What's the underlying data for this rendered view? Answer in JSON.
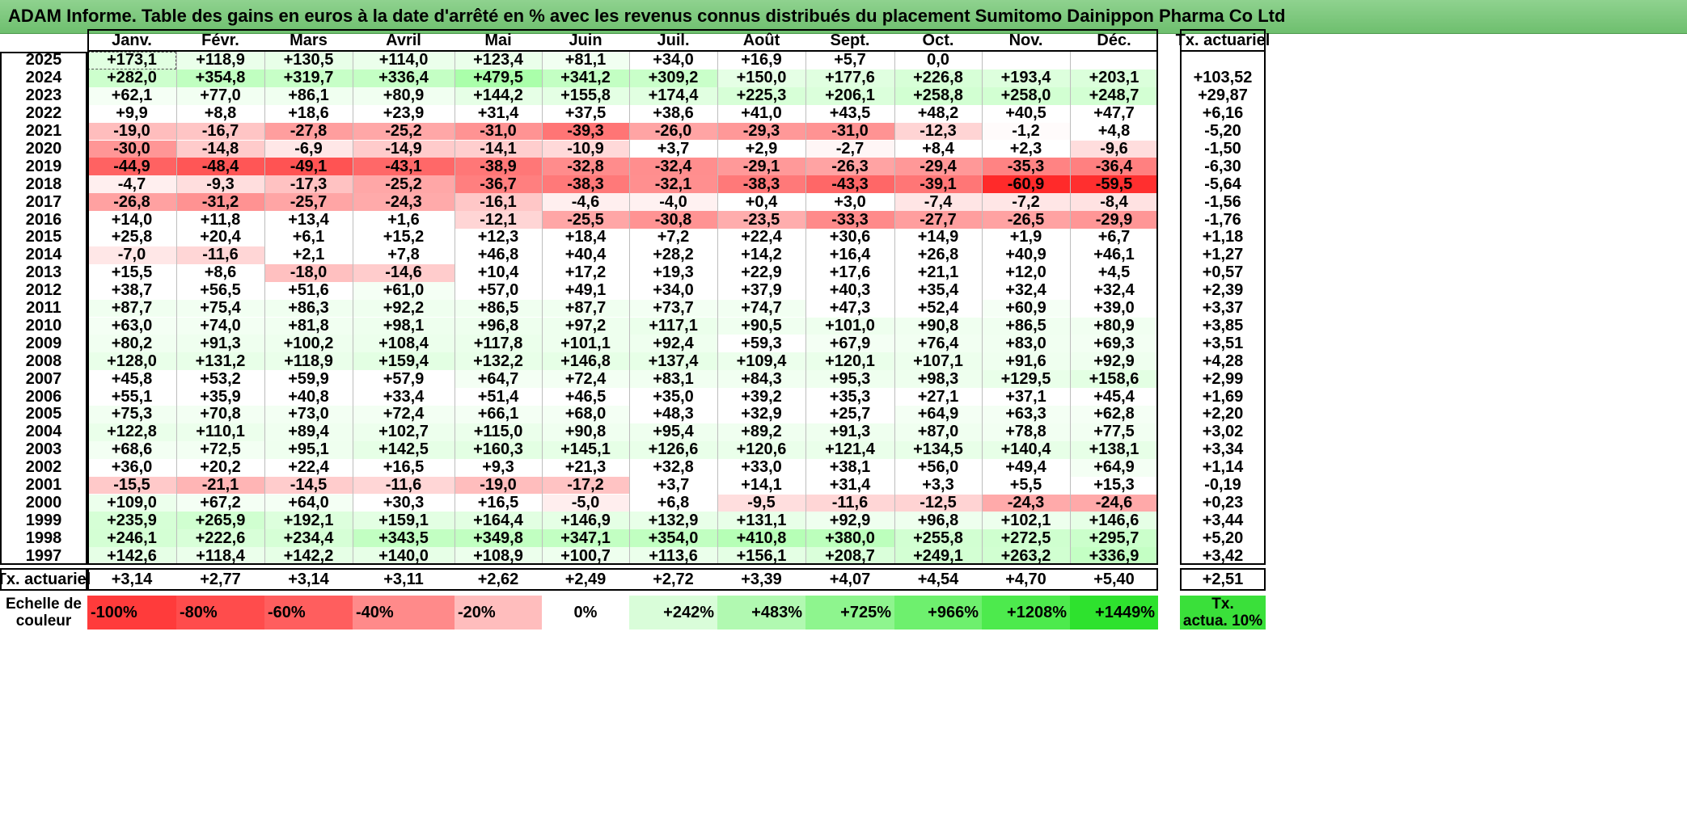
{
  "title": "ADAM Informe. Table des gains en euros à la date d'arrêté en % avec les revenus connus distribués du placement Sumitomo Dainippon Pharma Co Ltd",
  "months": [
    "Janv.",
    "Févr.",
    "Mars",
    "Avril",
    "Mai",
    "Juin",
    "Juil.",
    "Août",
    "Sept.",
    "Oct.",
    "Nov.",
    "Déc."
  ],
  "rate_header": "Tx. actuariel",
  "rows": [
    {
      "year": "2025",
      "values": [
        "+173,1",
        "+118,9",
        "+130,5",
        "+114,0",
        "+123,4",
        "+81,1",
        "+34,0",
        "+16,9",
        "+5,7",
        "0,0",
        "",
        ""
      ],
      "rate": ""
    },
    {
      "year": "2024",
      "values": [
        "+282,0",
        "+354,8",
        "+319,7",
        "+336,4",
        "+479,5",
        "+341,2",
        "+309,2",
        "+150,0",
        "+177,6",
        "+226,8",
        "+193,4",
        "+203,1"
      ],
      "rate": "+103,52"
    },
    {
      "year": "2023",
      "values": [
        "+62,1",
        "+77,0",
        "+86,1",
        "+80,9",
        "+144,2",
        "+155,8",
        "+174,4",
        "+225,3",
        "+206,1",
        "+258,8",
        "+258,0",
        "+248,7"
      ],
      "rate": "+29,87"
    },
    {
      "year": "2022",
      "values": [
        "+9,9",
        "+8,8",
        "+18,6",
        "+23,9",
        "+31,4",
        "+37,5",
        "+38,6",
        "+41,0",
        "+43,5",
        "+48,2",
        "+40,5",
        "+47,7"
      ],
      "rate": "+6,16"
    },
    {
      "year": "2021",
      "values": [
        "-19,0",
        "-16,7",
        "-27,8",
        "-25,2",
        "-31,0",
        "-39,3",
        "-26,0",
        "-29,3",
        "-31,0",
        "-12,3",
        "-1,2",
        "+4,8"
      ],
      "rate": "-5,20"
    },
    {
      "year": "2020",
      "values": [
        "-30,0",
        "-14,8",
        "-6,9",
        "-14,9",
        "-14,1",
        "-10,9",
        "+3,7",
        "+2,9",
        "-2,7",
        "+8,4",
        "+2,3",
        "-9,6"
      ],
      "rate": "-1,50"
    },
    {
      "year": "2019",
      "values": [
        "-44,9",
        "-48,4",
        "-49,1",
        "-43,1",
        "-38,9",
        "-32,8",
        "-32,4",
        "-29,1",
        "-26,3",
        "-29,4",
        "-35,3",
        "-36,4"
      ],
      "rate": "-6,30"
    },
    {
      "year": "2018",
      "values": [
        "-4,7",
        "-9,3",
        "-17,3",
        "-25,2",
        "-36,7",
        "-38,3",
        "-32,1",
        "-38,3",
        "-43,3",
        "-39,1",
        "-60,9",
        "-59,5"
      ],
      "rate": "-5,64"
    },
    {
      "year": "2017",
      "values": [
        "-26,8",
        "-31,2",
        "-25,7",
        "-24,3",
        "-16,1",
        "-4,6",
        "-4,0",
        "+0,4",
        "+3,0",
        "-7,4",
        "-7,2",
        "-8,4"
      ],
      "rate": "-1,56"
    },
    {
      "year": "2016",
      "values": [
        "+14,0",
        "+11,8",
        "+13,4",
        "+1,6",
        "-12,1",
        "-25,5",
        "-30,8",
        "-23,5",
        "-33,3",
        "-27,7",
        "-26,5",
        "-29,9"
      ],
      "rate": "-1,76"
    },
    {
      "year": "2015",
      "values": [
        "+25,8",
        "+20,4",
        "+6,1",
        "+15,2",
        "+12,3",
        "+18,4",
        "+7,2",
        "+22,4",
        "+30,6",
        "+14,9",
        "+1,9",
        "+6,7"
      ],
      "rate": "+1,18"
    },
    {
      "year": "2014",
      "values": [
        "-7,0",
        "-11,6",
        "+2,1",
        "+7,8",
        "+46,8",
        "+40,4",
        "+28,2",
        "+14,2",
        "+16,4",
        "+26,8",
        "+40,9",
        "+46,1"
      ],
      "rate": "+1,27"
    },
    {
      "year": "2013",
      "values": [
        "+15,5",
        "+8,6",
        "-18,0",
        "-14,6",
        "+10,4",
        "+17,2",
        "+19,3",
        "+22,9",
        "+17,6",
        "+21,1",
        "+12,0",
        "+4,5"
      ],
      "rate": "+0,57"
    },
    {
      "year": "2012",
      "values": [
        "+38,7",
        "+56,5",
        "+51,6",
        "+61,0",
        "+57,0",
        "+49,1",
        "+34,0",
        "+37,9",
        "+40,3",
        "+35,4",
        "+32,4",
        "+32,4"
      ],
      "rate": "+2,39"
    },
    {
      "year": "2011",
      "values": [
        "+87,7",
        "+75,4",
        "+86,3",
        "+92,2",
        "+86,5",
        "+87,7",
        "+73,7",
        "+74,7",
        "+47,3",
        "+52,4",
        "+60,9",
        "+39,0"
      ],
      "rate": "+3,37"
    },
    {
      "year": "2010",
      "values": [
        "+63,0",
        "+74,0",
        "+81,8",
        "+98,1",
        "+96,8",
        "+97,2",
        "+117,1",
        "+90,5",
        "+101,0",
        "+90,8",
        "+86,5",
        "+80,9"
      ],
      "rate": "+3,85"
    },
    {
      "year": "2009",
      "values": [
        "+80,2",
        "+91,3",
        "+100,2",
        "+108,4",
        "+117,8",
        "+101,1",
        "+92,4",
        "+59,3",
        "+67,9",
        "+76,4",
        "+83,0",
        "+69,3"
      ],
      "rate": "+3,51"
    },
    {
      "year": "2008",
      "values": [
        "+128,0",
        "+131,2",
        "+118,9",
        "+159,4",
        "+132,2",
        "+146,8",
        "+137,4",
        "+109,4",
        "+120,1",
        "+107,1",
        "+91,6",
        "+92,9"
      ],
      "rate": "+4,28"
    },
    {
      "year": "2007",
      "values": [
        "+45,8",
        "+53,2",
        "+59,9",
        "+57,9",
        "+64,7",
        "+72,4",
        "+83,1",
        "+84,3",
        "+95,3",
        "+98,3",
        "+129,5",
        "+158,6"
      ],
      "rate": "+2,99"
    },
    {
      "year": "2006",
      "values": [
        "+55,1",
        "+35,9",
        "+40,8",
        "+33,4",
        "+51,4",
        "+46,5",
        "+35,0",
        "+39,2",
        "+35,3",
        "+27,1",
        "+37,1",
        "+45,4"
      ],
      "rate": "+1,69"
    },
    {
      "year": "2005",
      "values": [
        "+75,3",
        "+70,8",
        "+73,0",
        "+72,4",
        "+66,1",
        "+68,0",
        "+48,3",
        "+32,9",
        "+25,7",
        "+64,9",
        "+63,3",
        "+62,8"
      ],
      "rate": "+2,20"
    },
    {
      "year": "2004",
      "values": [
        "+122,8",
        "+110,1",
        "+89,4",
        "+102,7",
        "+115,0",
        "+90,8",
        "+95,4",
        "+89,2",
        "+91,3",
        "+87,0",
        "+78,8",
        "+77,5"
      ],
      "rate": "+3,02"
    },
    {
      "year": "2003",
      "values": [
        "+68,6",
        "+72,5",
        "+95,1",
        "+142,5",
        "+160,3",
        "+145,1",
        "+126,6",
        "+120,6",
        "+121,4",
        "+134,5",
        "+140,4",
        "+138,1"
      ],
      "rate": "+3,34"
    },
    {
      "year": "2002",
      "values": [
        "+36,0",
        "+20,2",
        "+22,4",
        "+16,5",
        "+9,3",
        "+21,3",
        "+32,8",
        "+33,0",
        "+38,1",
        "+56,0",
        "+49,4",
        "+64,9"
      ],
      "rate": "+1,14"
    },
    {
      "year": "2001",
      "values": [
        "-15,5",
        "-21,1",
        "-14,5",
        "-11,6",
        "-19,0",
        "-17,2",
        "+3,7",
        "+14,1",
        "+31,4",
        "+3,3",
        "+5,5",
        "+15,3"
      ],
      "rate": "-0,19"
    },
    {
      "year": "2000",
      "values": [
        "+109,0",
        "+67,2",
        "+64,0",
        "+30,3",
        "+16,5",
        "-5,0",
        "+6,8",
        "-9,5",
        "-11,6",
        "-12,5",
        "-24,3",
        "-24,6"
      ],
      "rate": "+0,23"
    },
    {
      "year": "1999",
      "values": [
        "+235,9",
        "+265,9",
        "+192,1",
        "+159,1",
        "+164,4",
        "+146,9",
        "+132,9",
        "+131,1",
        "+92,9",
        "+96,8",
        "+102,1",
        "+146,6"
      ],
      "rate": "+3,44"
    },
    {
      "year": "1998",
      "values": [
        "+246,1",
        "+222,6",
        "+234,4",
        "+343,5",
        "+349,8",
        "+347,1",
        "+354,0",
        "+410,8",
        "+380,0",
        "+255,8",
        "+272,5",
        "+295,7"
      ],
      "rate": "+5,20"
    },
    {
      "year": "1997",
      "values": [
        "+142,6",
        "+118,4",
        "+142,2",
        "+140,0",
        "+108,9",
        "+100,7",
        "+113,6",
        "+156,1",
        "+208,7",
        "+249,1",
        "+263,2",
        "+336,9"
      ],
      "rate": "+3,42"
    }
  ],
  "footer": {
    "label": "Tx. actuariel",
    "values": [
      "+3,14",
      "+2,77",
      "+3,14",
      "+3,11",
      "+2,62",
      "+2,49",
      "+2,72",
      "+3,39",
      "+4,07",
      "+4,54",
      "+4,70",
      "+5,40"
    ],
    "rate": "+2,51"
  },
  "scale": {
    "label_line1": "Echelle de",
    "label_line2": "couleur",
    "steps": [
      {
        "label": "-100%",
        "color": "#ff3b3b",
        "align": "left"
      },
      {
        "label": "-80%",
        "color": "#ff4c4c",
        "align": "left"
      },
      {
        "label": "-60%",
        "color": "#ff5e5e",
        "align": "left"
      },
      {
        "label": "-40%",
        "color": "#ff8a8a",
        "align": "left"
      },
      {
        "label": "-20%",
        "color": "#ffbdbd",
        "align": "left"
      },
      {
        "label": "0%",
        "color": "#ffffff",
        "align": "center"
      },
      {
        "label": "+242%",
        "color": "#d9fdd9",
        "align": "right"
      },
      {
        "label": "+483%",
        "color": "#b1f9b1",
        "align": "right"
      },
      {
        "label": "+725%",
        "color": "#8ef58e",
        "align": "right"
      },
      {
        "label": "+966%",
        "color": "#6ef06e",
        "align": "right"
      },
      {
        "label": "+1208%",
        "color": "#4dea4d",
        "align": "right"
      },
      {
        "label": "+1449%",
        "color": "#2ee22e",
        "align": "right"
      }
    ],
    "rate_label_line1": "Tx.",
    "rate_label_line2": "actua. 10%",
    "rate_color": "#3ae03a"
  }
}
